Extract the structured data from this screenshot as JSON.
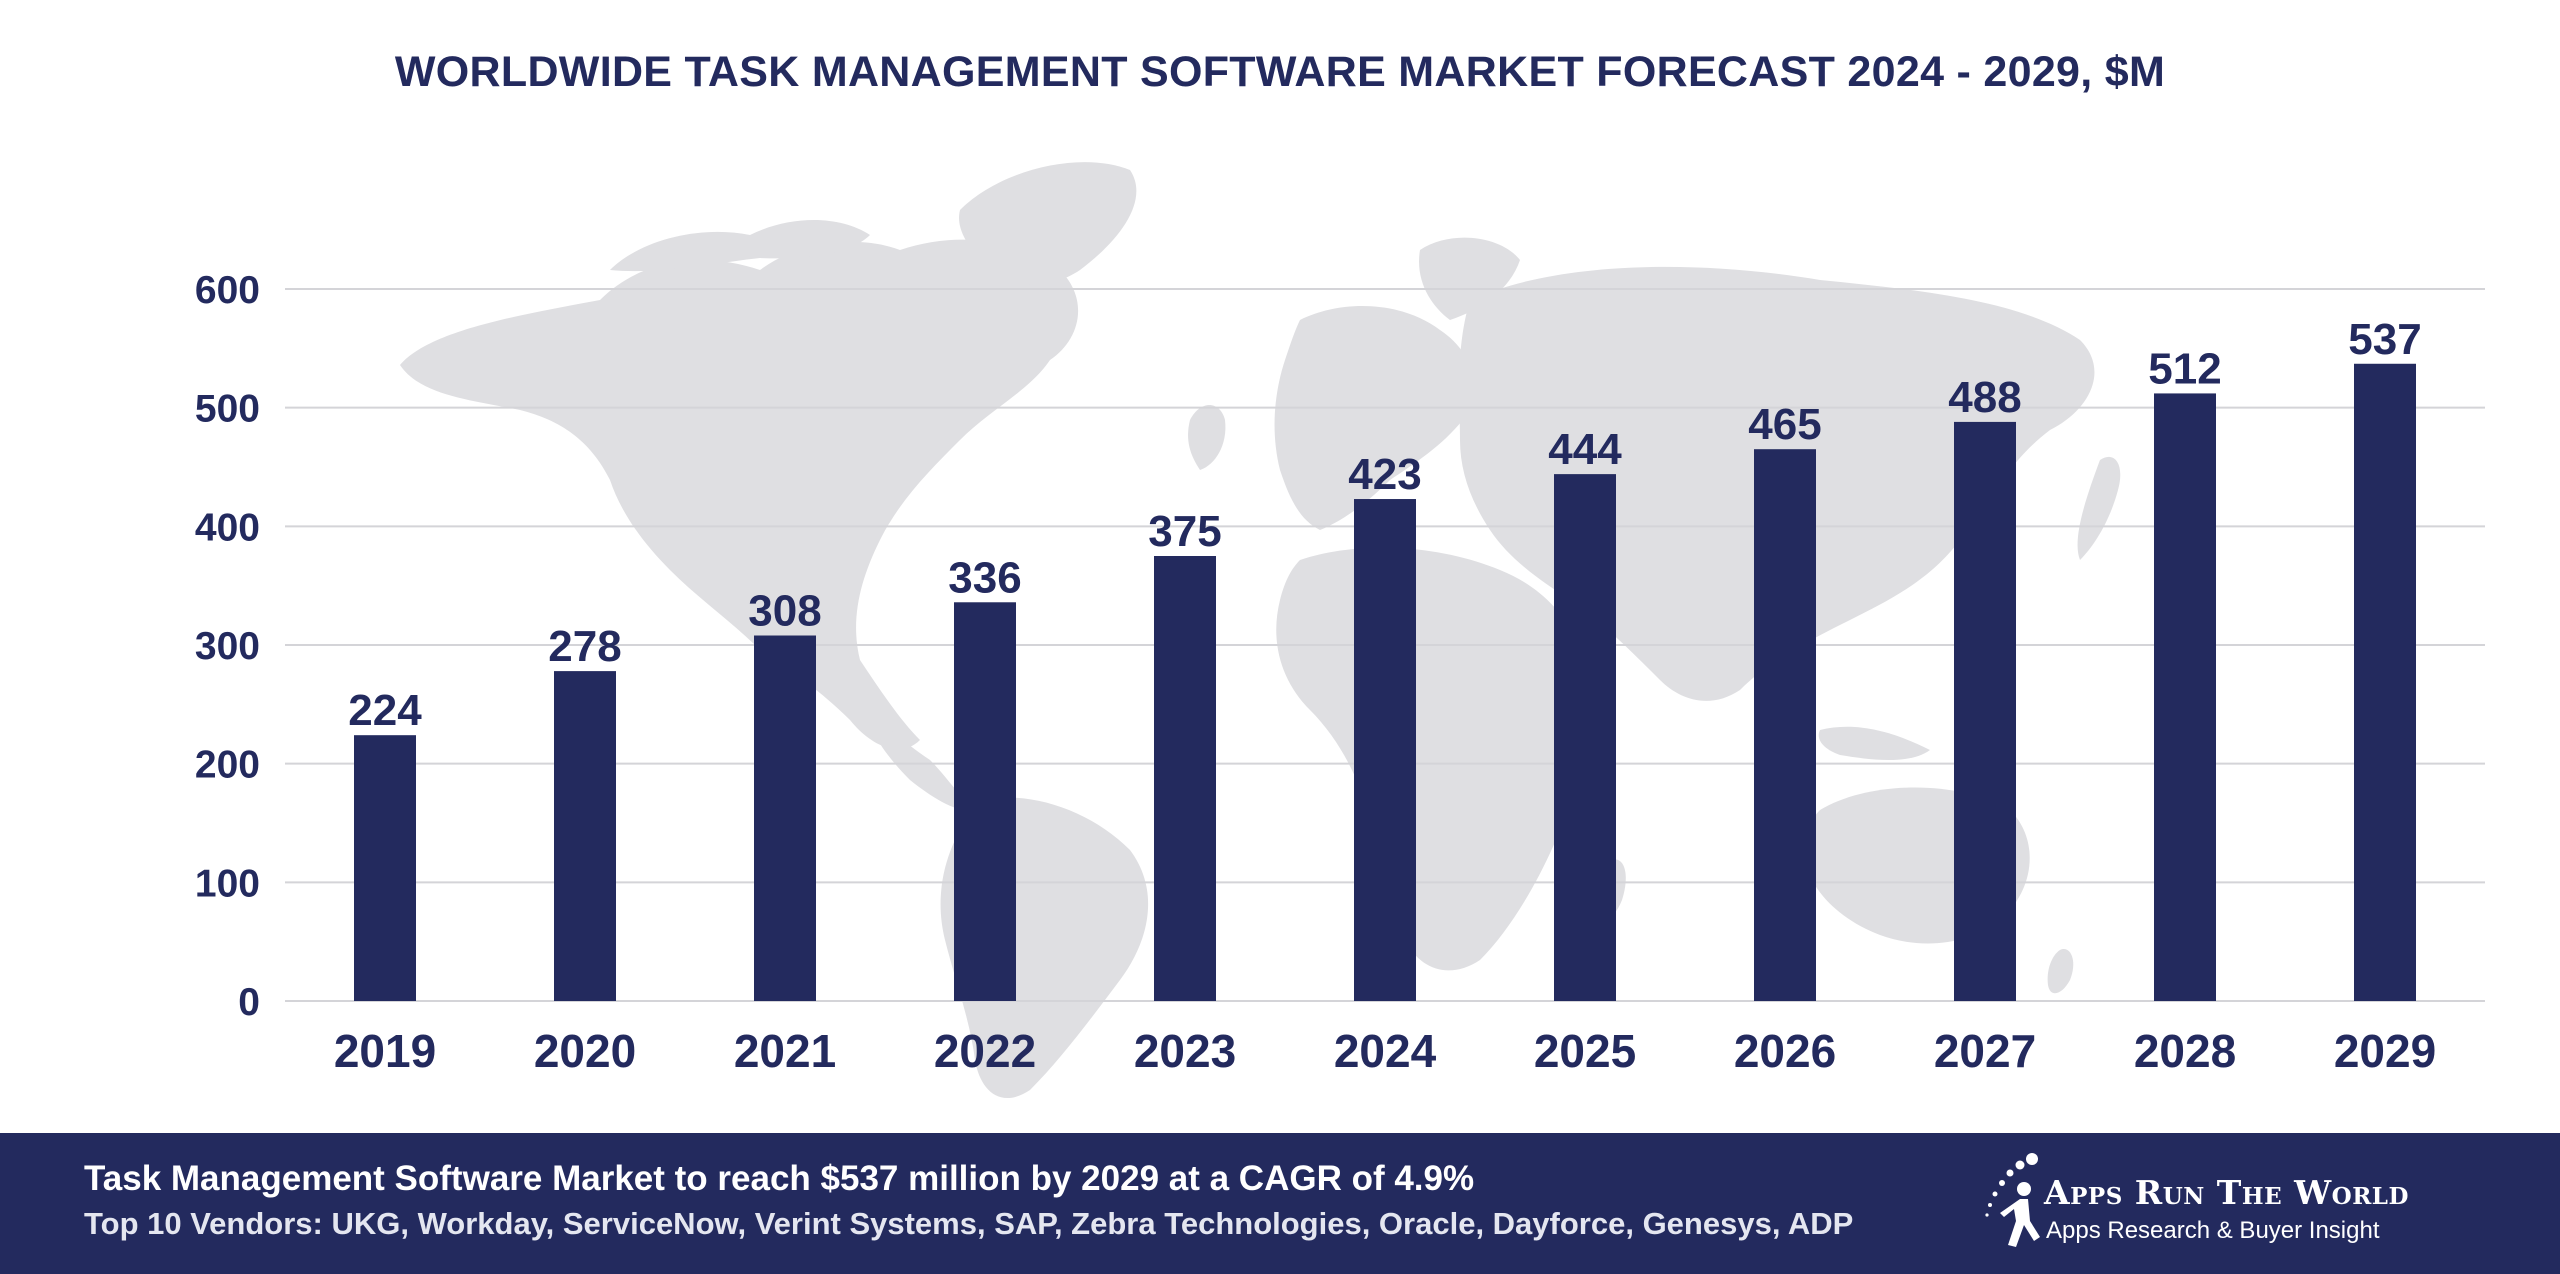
{
  "chart_data": {
    "type": "bar",
    "title": "WORLDWIDE TASK MANAGEMENT SOFTWARE MARKET FORECAST 2024 - 2029, $M",
    "categories": [
      "2019",
      "2020",
      "2021",
      "2022",
      "2023",
      "2024",
      "2025",
      "2026",
      "2027",
      "2028",
      "2029"
    ],
    "values": [
      224,
      278,
      308,
      336,
      375,
      423,
      444,
      465,
      488,
      512,
      537
    ],
    "yticks": [
      0,
      100,
      200,
      300,
      400,
      500,
      600
    ],
    "ylim": [
      0,
      600
    ],
    "xlabel": "",
    "ylabel": "",
    "grid": true,
    "bar_color": "#232a5e"
  },
  "footer": {
    "headline": "Task Management Software Market to reach $537 million by 2029 at a CAGR of 4.9%",
    "vendors": "Top 10 Vendors: UKG, Workday, ServiceNow, Verint Systems, SAP, Zebra Technologies, Oracle, Dayforce, Genesys, ADP",
    "brand_name": "Apps Run The World",
    "brand_tagline": "Apps Research & Buyer Insight",
    "background_color": "#232a5e"
  },
  "background": {
    "icon": "world-map-icon",
    "color": "#dfdfe2"
  }
}
